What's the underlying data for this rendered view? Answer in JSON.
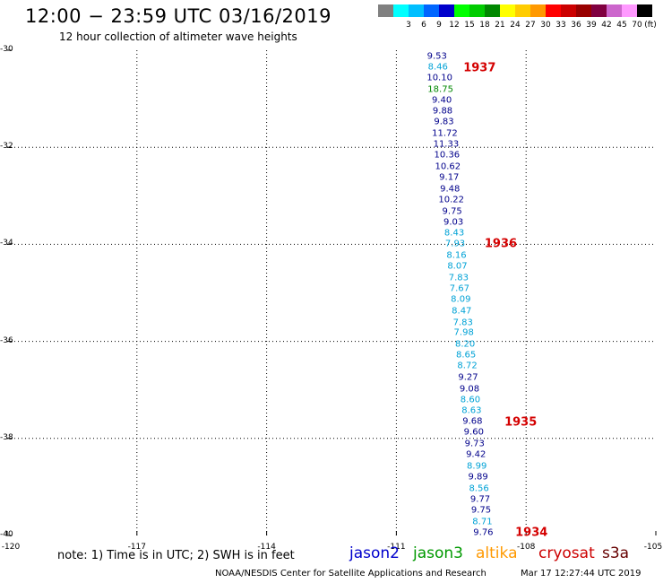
{
  "header": {
    "title": "12:00 − 23:59 UTC 03/16/2019",
    "subtitle": "12 hour collection of altimeter wave heights"
  },
  "color_scale": {
    "unit_label": "(ft)",
    "bins": [
      {
        "label": "",
        "color": "#808080"
      },
      {
        "label": "3",
        "color": "#00ffff"
      },
      {
        "label": "6",
        "color": "#00bfff"
      },
      {
        "label": "9",
        "color": "#0066ff"
      },
      {
        "label": "12",
        "color": "#0000cc"
      },
      {
        "label": "15",
        "color": "#00ff00"
      },
      {
        "label": "18",
        "color": "#00cc00"
      },
      {
        "label": "21",
        "color": "#008800"
      },
      {
        "label": "24",
        "color": "#ffff00"
      },
      {
        "label": "27",
        "color": "#ffcc00"
      },
      {
        "label": "30",
        "color": "#ff9900"
      },
      {
        "label": "33",
        "color": "#ff0000"
      },
      {
        "label": "36",
        "color": "#cc0000"
      },
      {
        "label": "39",
        "color": "#990000"
      },
      {
        "label": "42",
        "color": "#800040"
      },
      {
        "label": "45",
        "color": "#cc66cc"
      },
      {
        "label": "70",
        "color": "#ff99ff"
      },
      {
        "label": "",
        "color": "#000000"
      }
    ]
  },
  "map": {
    "lon_range": [
      -120,
      -105
    ],
    "lat_range": [
      -40,
      -30
    ],
    "x_ticks": [
      "-120",
      "-117",
      "-114",
      "-111",
      "-108",
      "-105"
    ],
    "x_tick_values": [
      -120,
      -117,
      -114,
      -111,
      -108,
      -105
    ],
    "y_ticks": [
      "-30",
      "-32",
      "-34",
      "-36",
      "-38",
      "-40"
    ],
    "y_tick_values": [
      -30,
      -32,
      -34,
      -36,
      -38,
      -40
    ],
    "grid": true,
    "series_colors": {
      "j2": "#00008b",
      "j3": "#00a2d6",
      "alt": "#008800"
    },
    "observations": [
      {
        "lat": -30.13,
        "lon": -110.06,
        "v": "9.53",
        "s": "j2"
      },
      {
        "lat": -30.35,
        "lon": -110.04,
        "v": "8.46",
        "s": "j3"
      },
      {
        "lat": -30.58,
        "lon": -110.0,
        "v": "10.10",
        "s": "j2"
      },
      {
        "lat": -30.81,
        "lon": -109.98,
        "v": "18.75",
        "s": "alt"
      },
      {
        "lat": -31.03,
        "lon": -109.95,
        "v": "9.40",
        "s": "j2"
      },
      {
        "lat": -31.26,
        "lon": -109.93,
        "v": "9.88",
        "s": "j2"
      },
      {
        "lat": -31.48,
        "lon": -109.9,
        "v": "9.83",
        "s": "j2"
      },
      {
        "lat": -31.72,
        "lon": -109.88,
        "v": "11.72",
        "s": "j2"
      },
      {
        "lat": -31.94,
        "lon": -109.85,
        "v": "11.33",
        "s": "j2"
      },
      {
        "lat": -32.17,
        "lon": -109.83,
        "v": "10.36",
        "s": "j2"
      },
      {
        "lat": -32.4,
        "lon": -109.81,
        "v": "10.62",
        "s": "j2"
      },
      {
        "lat": -32.62,
        "lon": -109.78,
        "v": "9.17",
        "s": "j2"
      },
      {
        "lat": -32.86,
        "lon": -109.76,
        "v": "9.48",
        "s": "j2"
      },
      {
        "lat": -33.09,
        "lon": -109.73,
        "v": "10.22",
        "s": "j2"
      },
      {
        "lat": -33.32,
        "lon": -109.71,
        "v": "9.75",
        "s": "j2"
      },
      {
        "lat": -33.54,
        "lon": -109.68,
        "v": "9.03",
        "s": "j2"
      },
      {
        "lat": -33.78,
        "lon": -109.66,
        "v": "8.43",
        "s": "j3"
      },
      {
        "lat": -33.99,
        "lon": -109.64,
        "v": "7.93",
        "s": "j3"
      },
      {
        "lat": -34.23,
        "lon": -109.61,
        "v": "8.16",
        "s": "j3"
      },
      {
        "lat": -34.46,
        "lon": -109.59,
        "v": "8.07",
        "s": "j3"
      },
      {
        "lat": -34.69,
        "lon": -109.56,
        "v": "7.83",
        "s": "j3"
      },
      {
        "lat": -34.91,
        "lon": -109.54,
        "v": "7.67",
        "s": "j3"
      },
      {
        "lat": -35.14,
        "lon": -109.51,
        "v": "8.09",
        "s": "j3"
      },
      {
        "lat": -35.37,
        "lon": -109.49,
        "v": "8.47",
        "s": "j3"
      },
      {
        "lat": -35.61,
        "lon": -109.46,
        "v": "7.83",
        "s": "j3"
      },
      {
        "lat": -35.83,
        "lon": -109.44,
        "v": "7.98",
        "s": "j3"
      },
      {
        "lat": -36.06,
        "lon": -109.41,
        "v": "8.20",
        "s": "j3"
      },
      {
        "lat": -36.29,
        "lon": -109.39,
        "v": "8.65",
        "s": "j3"
      },
      {
        "lat": -36.51,
        "lon": -109.36,
        "v": "8.72",
        "s": "j3"
      },
      {
        "lat": -36.74,
        "lon": -109.34,
        "v": "9.27",
        "s": "j2"
      },
      {
        "lat": -36.98,
        "lon": -109.31,
        "v": "9.08",
        "s": "j2"
      },
      {
        "lat": -37.2,
        "lon": -109.29,
        "v": "8.60",
        "s": "j3"
      },
      {
        "lat": -37.43,
        "lon": -109.26,
        "v": "8.63",
        "s": "j3"
      },
      {
        "lat": -37.66,
        "lon": -109.24,
        "v": "9.68",
        "s": "j2"
      },
      {
        "lat": -37.88,
        "lon": -109.21,
        "v": "9.60",
        "s": "j2"
      },
      {
        "lat": -38.11,
        "lon": -109.19,
        "v": "9.73",
        "s": "j2"
      },
      {
        "lat": -38.34,
        "lon": -109.16,
        "v": "9.42",
        "s": "j2"
      },
      {
        "lat": -38.58,
        "lon": -109.14,
        "v": "8.99",
        "s": "j3"
      },
      {
        "lat": -38.8,
        "lon": -109.11,
        "v": "9.89",
        "s": "j2"
      },
      {
        "lat": -39.03,
        "lon": -109.09,
        "v": "8.56",
        "s": "j3"
      },
      {
        "lat": -39.26,
        "lon": -109.06,
        "v": "9.77",
        "s": "j2"
      },
      {
        "lat": -39.48,
        "lon": -109.04,
        "v": "9.75",
        "s": "j2"
      },
      {
        "lat": -39.72,
        "lon": -109.01,
        "v": "8.71",
        "s": "j3"
      },
      {
        "lat": -39.95,
        "lon": -108.99,
        "v": "9.76",
        "s": "j2"
      }
    ],
    "pass_labels": [
      {
        "lat": -30.37,
        "lon": -109.45,
        "v": "1937"
      },
      {
        "lat": -34.0,
        "lon": -108.96,
        "v": "1936"
      },
      {
        "lat": -37.68,
        "lon": -108.5,
        "v": "1935"
      },
      {
        "lat": -39.95,
        "lon": -108.25,
        "v": "1934"
      }
    ]
  },
  "note": "note:  1) Time is in UTC;  2) SWH is in feet",
  "legend": [
    {
      "label": "jason2",
      "color": "#0000cc"
    },
    {
      "label": "jason3",
      "color": "#009900"
    },
    {
      "label": "altika",
      "color": "#ff9900"
    },
    {
      "label": "cryosat",
      "color": "#cc0000"
    },
    {
      "label": "s3a",
      "color": "#660000"
    }
  ],
  "footer": {
    "credit": "NOAA/NESDIS Center for Satellite Applications and Research",
    "timestamp": "Mar 17 12:27:44 UTC 2019"
  }
}
